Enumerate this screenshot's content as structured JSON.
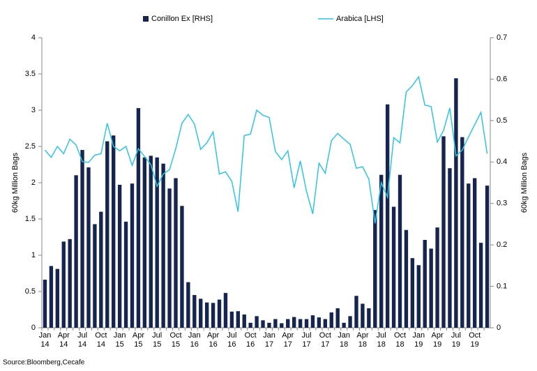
{
  "chart_data": {
    "type": "bar-line",
    "y_label": "60kg Million Bags",
    "y2_label": "60kg Million Bags",
    "source": "Source:Bloomberg,Cecafe",
    "categories": [
      "Jan 14",
      null,
      null,
      "Apr 14",
      null,
      null,
      "Jul 14",
      null,
      null,
      "Oct 14",
      null,
      null,
      "Jan 15",
      null,
      null,
      "Apr 15",
      null,
      null,
      "Jul 15",
      null,
      null,
      "Oct 15",
      null,
      null,
      "Jan 16",
      null,
      null,
      "Apr 16",
      null,
      null,
      "Jul 16",
      null,
      null,
      "Oct 16",
      null,
      null,
      "Jan 17",
      null,
      null,
      "Apr 17",
      null,
      null,
      "Jul 17",
      null,
      null,
      "Oct 17",
      null,
      null,
      "Jan 18",
      null,
      null,
      "Apr 18",
      null,
      null,
      "Jul 18",
      null,
      null,
      "Oct 18",
      null,
      null,
      "Jan 19",
      null,
      null,
      "Apr 19",
      null,
      null,
      "Jul 19",
      null,
      null,
      "Oct 19",
      null,
      null
    ],
    "series": [
      {
        "name": "Conillon Ex [RHS]",
        "kind": "bar",
        "axis": "y2",
        "color": "#15254f",
        "values": [
          0.116,
          0.149,
          0.142,
          0.208,
          0.214,
          0.368,
          0.429,
          0.387,
          0.25,
          0.28,
          0.45,
          0.464,
          0.345,
          0.256,
          0.348,
          0.53,
          0.411,
          0.415,
          0.411,
          0.396,
          0.336,
          0.361,
          0.294,
          0.11,
          0.079,
          0.07,
          0.061,
          0.06,
          0.068,
          0.084,
          0.039,
          0.04,
          0.032,
          0.012,
          0.028,
          0.018,
          0.012,
          0.021,
          0.011,
          0.021,
          0.026,
          0.021,
          0.021,
          0.03,
          0.025,
          0.021,
          0.037,
          0.047,
          0.012,
          0.028,
          0.077,
          0.058,
          0.047,
          0.284,
          0.369,
          0.539,
          0.292,
          0.369,
          0.236,
          0.168,
          0.151,
          0.212,
          0.191,
          0.242,
          0.462,
          0.385,
          0.602,
          0.46,
          0.348,
          0.361,
          0.205,
          0.343
        ]
      },
      {
        "name": "Arabica [LHS]",
        "kind": "line",
        "axis": "y",
        "color": "#2ec4e6",
        "values": [
          2.45,
          2.35,
          2.5,
          2.4,
          2.6,
          2.52,
          2.29,
          2.28,
          2.38,
          2.4,
          2.82,
          2.5,
          2.44,
          2.5,
          2.24,
          2.47,
          2.36,
          2.25,
          1.95,
          2.12,
          2.18,
          2.47,
          2.82,
          2.94,
          2.81,
          2.46,
          2.55,
          2.7,
          2.12,
          2.15,
          2.02,
          1.6,
          2.65,
          2.67,
          3.0,
          2.93,
          2.9,
          2.43,
          2.32,
          2.44,
          1.93,
          2.3,
          1.88,
          1.57,
          2.27,
          2.13,
          2.58,
          2.68,
          2.6,
          2.53,
          2.2,
          2.22,
          2.05,
          1.44,
          2.0,
          1.8,
          2.62,
          2.55,
          3.25,
          3.34,
          3.46,
          3.07,
          3.05,
          2.56,
          2.72,
          3.03,
          2.37,
          2.45,
          2.63,
          2.8,
          2.97,
          2.4
        ]
      }
    ],
    "ylim": [
      0,
      4
    ],
    "yticks": [
      0,
      0.5,
      1,
      1.5,
      2,
      2.5,
      3,
      3.5,
      4
    ],
    "y2lim": [
      0,
      0.7
    ],
    "y2ticks": [
      0,
      0.1,
      0.2,
      0.3,
      0.4,
      0.5,
      0.6,
      0.7
    ],
    "legend": "top"
  }
}
